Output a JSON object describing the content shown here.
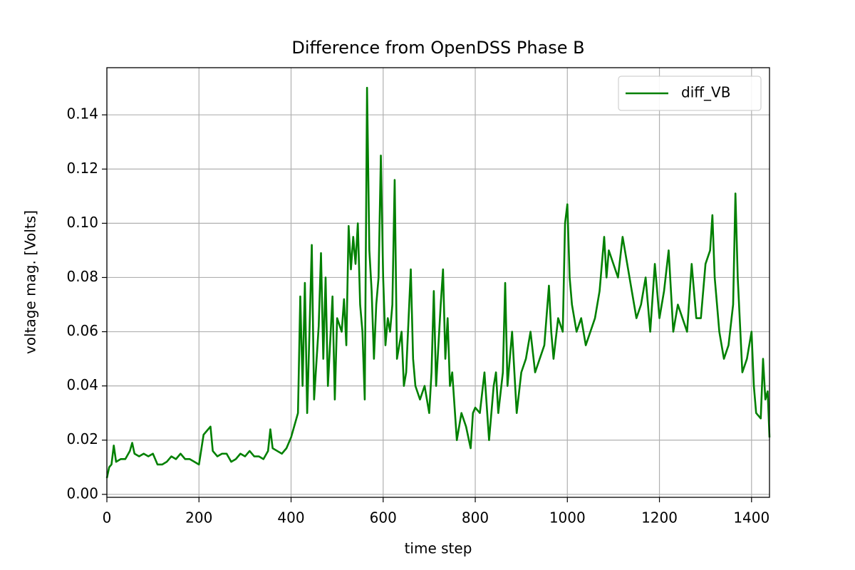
{
  "chart_data": {
    "type": "line",
    "title": "Difference from OpenDSS Phase B",
    "x_label": "time step",
    "y_label": "voltage mag. [Volts]",
    "x": [
      0,
      5,
      10,
      15,
      20,
      30,
      40,
      50,
      55,
      60,
      70,
      80,
      90,
      100,
      110,
      120,
      130,
      140,
      150,
      160,
      170,
      180,
      190,
      200,
      210,
      220,
      225,
      230,
      240,
      250,
      260,
      270,
      280,
      290,
      300,
      310,
      320,
      330,
      340,
      350,
      355,
      360,
      370,
      380,
      390,
      400,
      410,
      415,
      420,
      425,
      430,
      435,
      440,
      445,
      450,
      460,
      465,
      470,
      475,
      480,
      490,
      495,
      500,
      510,
      515,
      520,
      525,
      530,
      535,
      540,
      545,
      550,
      555,
      560,
      565,
      570,
      575,
      580,
      585,
      590,
      595,
      600,
      605,
      610,
      615,
      620,
      625,
      630,
      640,
      645,
      650,
      660,
      665,
      670,
      680,
      690,
      700,
      705,
      710,
      715,
      720,
      725,
      730,
      735,
      740,
      745,
      750,
      760,
      770,
      780,
      790,
      795,
      800,
      810,
      820,
      830,
      840,
      845,
      850,
      860,
      865,
      870,
      880,
      890,
      900,
      910,
      920,
      930,
      940,
      950,
      960,
      965,
      970,
      980,
      990,
      995,
      1000,
      1005,
      1010,
      1020,
      1030,
      1040,
      1050,
      1060,
      1070,
      1080,
      1085,
      1090,
      1100,
      1110,
      1120,
      1130,
      1140,
      1150,
      1160,
      1170,
      1180,
      1190,
      1200,
      1210,
      1220,
      1230,
      1240,
      1250,
      1260,
      1270,
      1280,
      1290,
      1300,
      1310,
      1315,
      1320,
      1330,
      1340,
      1350,
      1360,
      1365,
      1370,
      1380,
      1390,
      1400,
      1405,
      1410,
      1420,
      1425,
      1430,
      1435,
      1439
    ],
    "series": [
      {
        "name": "diff_VB",
        "color": "#008000",
        "values": [
          0.006,
          0.01,
          0.011,
          0.018,
          0.012,
          0.013,
          0.013,
          0.016,
          0.019,
          0.015,
          0.014,
          0.015,
          0.014,
          0.015,
          0.011,
          0.011,
          0.012,
          0.014,
          0.013,
          0.015,
          0.013,
          0.013,
          0.012,
          0.011,
          0.022,
          0.024,
          0.025,
          0.016,
          0.014,
          0.015,
          0.015,
          0.012,
          0.013,
          0.015,
          0.014,
          0.016,
          0.014,
          0.014,
          0.013,
          0.016,
          0.024,
          0.017,
          0.016,
          0.015,
          0.017,
          0.021,
          0.027,
          0.03,
          0.073,
          0.04,
          0.078,
          0.03,
          0.06,
          0.092,
          0.035,
          0.062,
          0.089,
          0.05,
          0.08,
          0.04,
          0.073,
          0.035,
          0.065,
          0.06,
          0.072,
          0.055,
          0.099,
          0.083,
          0.095,
          0.085,
          0.1,
          0.07,
          0.06,
          0.035,
          0.15,
          0.09,
          0.075,
          0.05,
          0.07,
          0.08,
          0.125,
          0.08,
          0.055,
          0.065,
          0.06,
          0.07,
          0.116,
          0.05,
          0.06,
          0.04,
          0.045,
          0.083,
          0.05,
          0.04,
          0.035,
          0.04,
          0.03,
          0.045,
          0.075,
          0.04,
          0.055,
          0.07,
          0.083,
          0.05,
          0.065,
          0.04,
          0.045,
          0.02,
          0.03,
          0.025,
          0.017,
          0.03,
          0.032,
          0.03,
          0.045,
          0.02,
          0.04,
          0.045,
          0.03,
          0.045,
          0.078,
          0.04,
          0.06,
          0.03,
          0.045,
          0.05,
          0.06,
          0.045,
          0.05,
          0.055,
          0.077,
          0.06,
          0.05,
          0.065,
          0.06,
          0.1,
          0.107,
          0.08,
          0.07,
          0.06,
          0.065,
          0.055,
          0.06,
          0.065,
          0.075,
          0.095,
          0.08,
          0.09,
          0.085,
          0.08,
          0.095,
          0.085,
          0.075,
          0.065,
          0.07,
          0.08,
          0.06,
          0.085,
          0.065,
          0.075,
          0.09,
          0.06,
          0.07,
          0.065,
          0.06,
          0.085,
          0.065,
          0.065,
          0.085,
          0.09,
          0.103,
          0.08,
          0.06,
          0.05,
          0.055,
          0.07,
          0.111,
          0.08,
          0.045,
          0.05,
          0.06,
          0.04,
          0.03,
          0.028,
          0.05,
          0.035,
          0.038,
          0.021
        ]
      }
    ],
    "xlim": [
      0,
      1439
    ],
    "ylim": [
      -0.0011,
      0.1574
    ],
    "xticks": [
      0,
      200,
      400,
      600,
      800,
      1000,
      1200,
      1400
    ],
    "yticks": [
      {
        "value": 0,
        "label": "0.00"
      },
      0.02,
      0.04,
      0.06,
      0.08,
      {
        "value": 0.1,
        "label": "0.10"
      },
      0.12,
      0.14
    ],
    "grid": true,
    "legend": "upper right"
  }
}
